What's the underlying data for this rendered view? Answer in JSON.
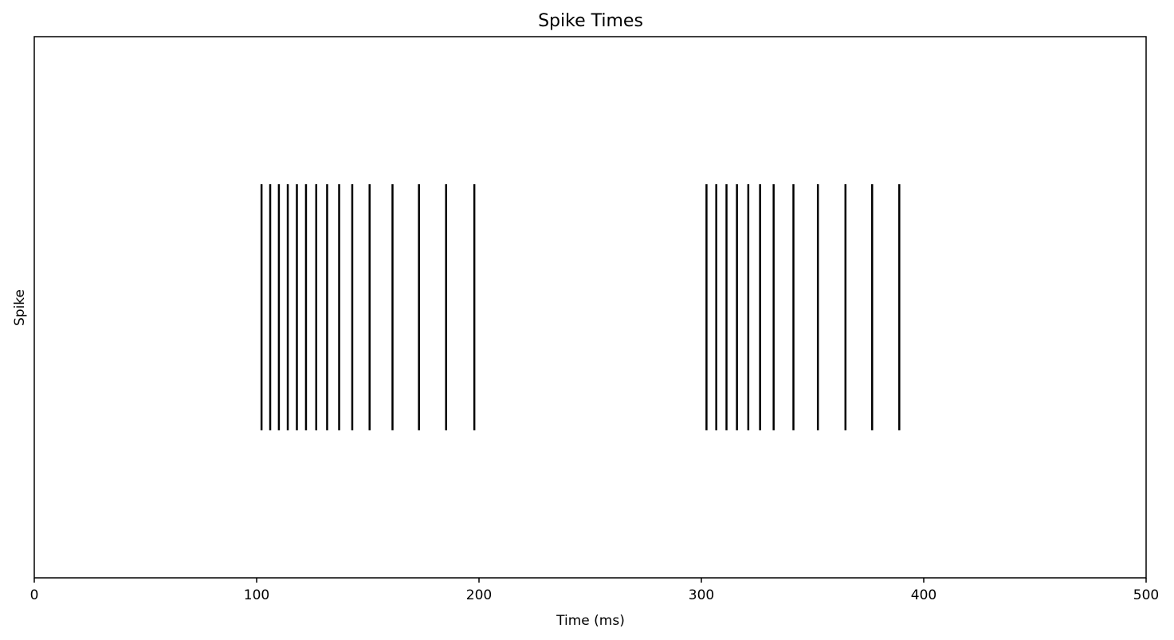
{
  "chart_data": {
    "type": "scatter",
    "subtype": "eventplot",
    "title": "Spike Times",
    "xlabel": "Time (ms)",
    "ylabel": "Spike",
    "xlim": [
      0,
      500
    ],
    "ylim": [
      -0.5,
      1.7
    ],
    "xticks": [
      0,
      100,
      200,
      300,
      400,
      500
    ],
    "xtick_labels": [
      "0",
      "100",
      "200",
      "300",
      "400",
      "500"
    ],
    "yticks": [],
    "grid": false,
    "legend": "none",
    "line_color": "#000000",
    "event_center": 0.6,
    "event_length": 1.0,
    "series": [
      {
        "values": [
          102.2,
          106.1,
          110.0,
          114.0,
          118.1,
          122.2,
          126.8,
          131.7,
          137.1,
          143.0,
          150.8,
          161.1,
          173.0,
          185.2,
          197.9,
          302.3,
          306.7,
          311.3,
          316.0,
          321.1,
          326.4,
          332.5,
          341.4,
          352.4,
          364.8,
          376.8,
          389.0
        ]
      }
    ]
  }
}
